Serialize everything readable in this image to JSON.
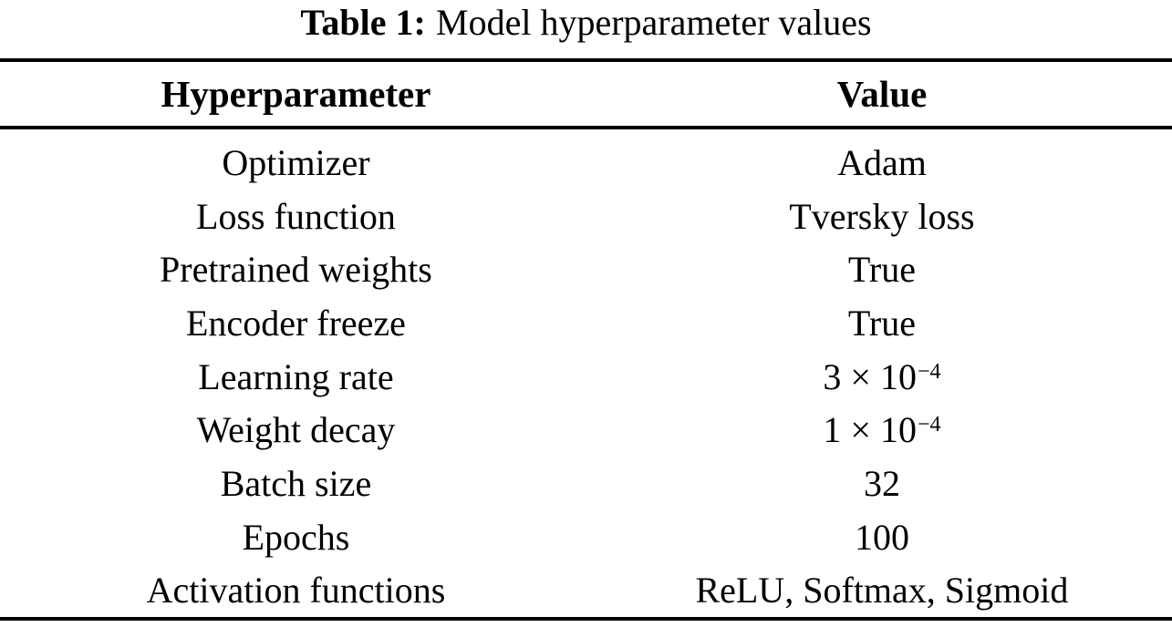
{
  "caption": {
    "label": "Table 1:",
    "title": "Model hyperparameter values"
  },
  "table": {
    "headers": {
      "param": "Hyperparameter",
      "value": "Value"
    },
    "rows": [
      {
        "param": "Optimizer",
        "value": "Adam"
      },
      {
        "param": "Loss function",
        "value": "Tversky loss"
      },
      {
        "param": "Pretrained weights",
        "value": "True"
      },
      {
        "param": "Encoder freeze",
        "value": "True"
      },
      {
        "param": "Learning rate",
        "value": "3 × 10",
        "value_exp": "−4"
      },
      {
        "param": "Weight decay",
        "value": "1 × 10",
        "value_exp": "−4"
      },
      {
        "param": "Batch size",
        "value": "32"
      },
      {
        "param": "Epochs",
        "value": "100"
      },
      {
        "param": "Activation functions",
        "value": "ReLU, Softmax, Sigmoid"
      }
    ]
  },
  "colors": {
    "text": "#000000",
    "background": "#ffffff",
    "rule": "#000000"
  }
}
